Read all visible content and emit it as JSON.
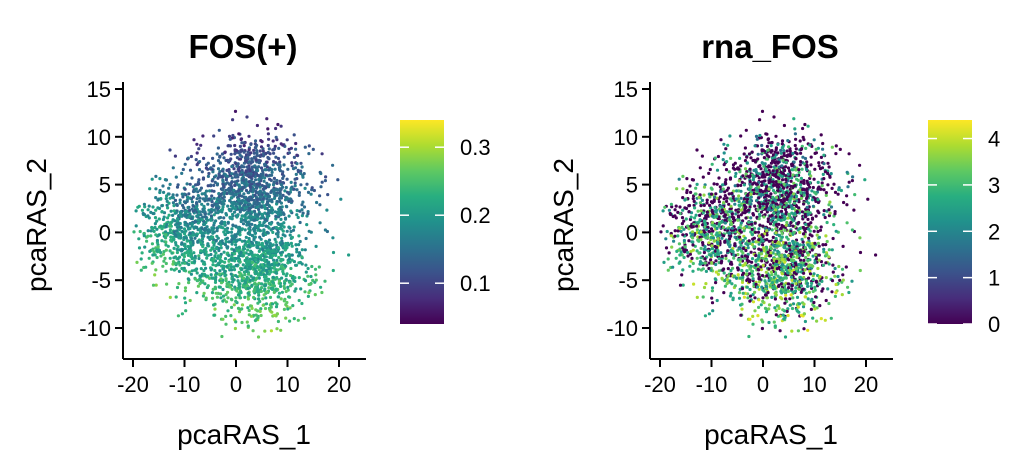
{
  "chart_data": [
    {
      "type": "scatter",
      "title": "FOS(+)",
      "xlabel": "pcaRAS_1",
      "ylabel": "pcaRAS_2",
      "xlim": [
        -22,
        25
      ],
      "ylim": [
        -13,
        15
      ],
      "x_ticks": [
        -20,
        -10,
        0,
        10,
        20
      ],
      "x_tick_labels": [
        "-20",
        "-10",
        "0",
        "10",
        "20"
      ],
      "y_ticks": [
        -10,
        -5,
        0,
        5,
        10,
        15
      ],
      "y_tick_labels": [
        "-10",
        "-5",
        "0",
        "5",
        "10",
        "15"
      ],
      "grid": false,
      "colormap": "viridis",
      "color_range": [
        0.04,
        0.34
      ],
      "colorbar_ticks": [
        0.1,
        0.2,
        0.3
      ],
      "colorbar_tick_labels": [
        "0.1",
        "0.2",
        "0.3"
      ],
      "legend": "right",
      "point_cloud": {
        "n_points": 2600,
        "x_range": [
          -20,
          22
        ],
        "y_range": [
          -11,
          13
        ],
        "top_region_value": 0.07,
        "bottom_region_value": 0.28
      }
    },
    {
      "type": "scatter",
      "title": "rna_FOS",
      "xlabel": "pcaRAS_1",
      "ylabel": "pcaRAS_2",
      "xlim": [
        -22,
        25
      ],
      "ylim": [
        -13,
        15
      ],
      "x_ticks": [
        -20,
        -10,
        0,
        10,
        20
      ],
      "x_tick_labels": [
        "-20",
        "-10",
        "0",
        "10",
        "20"
      ],
      "y_ticks": [
        -10,
        -5,
        0,
        5,
        10,
        15
      ],
      "y_tick_labels": [
        "-10",
        "-5",
        "0",
        "5",
        "10",
        "15"
      ],
      "grid": false,
      "colormap": "viridis",
      "color_range": [
        0,
        4.4
      ],
      "colorbar_ticks": [
        0,
        1,
        2,
        3,
        4
      ],
      "colorbar_tick_labels": [
        "0",
        "1",
        "2",
        "3",
        "4"
      ],
      "legend": "right",
      "point_cloud": {
        "n_points": 2600,
        "x_range": [
          -20,
          22
        ],
        "y_range": [
          -11,
          13
        ],
        "zero_fraction_top": 0.75,
        "zero_fraction_bottom": 0.15
      }
    }
  ]
}
